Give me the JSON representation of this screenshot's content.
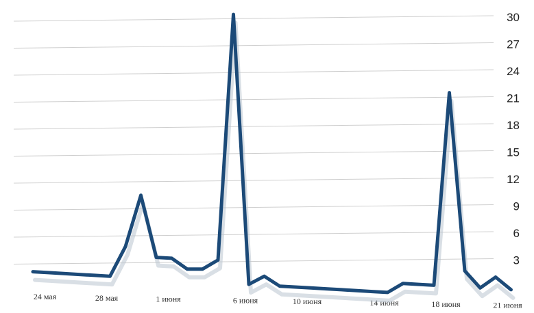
{
  "chart_data": {
    "type": "line",
    "title": "",
    "xlabel": "",
    "ylabel": "",
    "ylim": [
      0,
      30
    ],
    "y_ticks": [
      3,
      6,
      9,
      12,
      15,
      18,
      21,
      24,
      27,
      30
    ],
    "y_axis_side": "right",
    "grid": true,
    "x_tick_labels": [
      "24 мая",
      "28 мая",
      "1 июня",
      "6 июня",
      "10 июня",
      "14 июня",
      "18 июня",
      "21 июня"
    ],
    "x_tick_indices": [
      1,
      5,
      9,
      14,
      18,
      23,
      27,
      31
    ],
    "series": [
      {
        "color": "#1c4a78",
        "values": [
          1.7,
          1.6,
          1.5,
          1.4,
          1.3,
          1.2,
          4.5,
          10.2,
          3.3,
          3.2,
          2.0,
          2.0,
          3.0,
          30.3,
          0.3,
          1.2,
          0.1,
          0.0,
          -0.1,
          -0.2,
          -0.3,
          -0.4,
          -0.5,
          -0.6,
          0.4,
          0.3,
          0.2,
          21.6,
          1.8,
          -0.1,
          1.1,
          -0.3
        ]
      }
    ]
  }
}
